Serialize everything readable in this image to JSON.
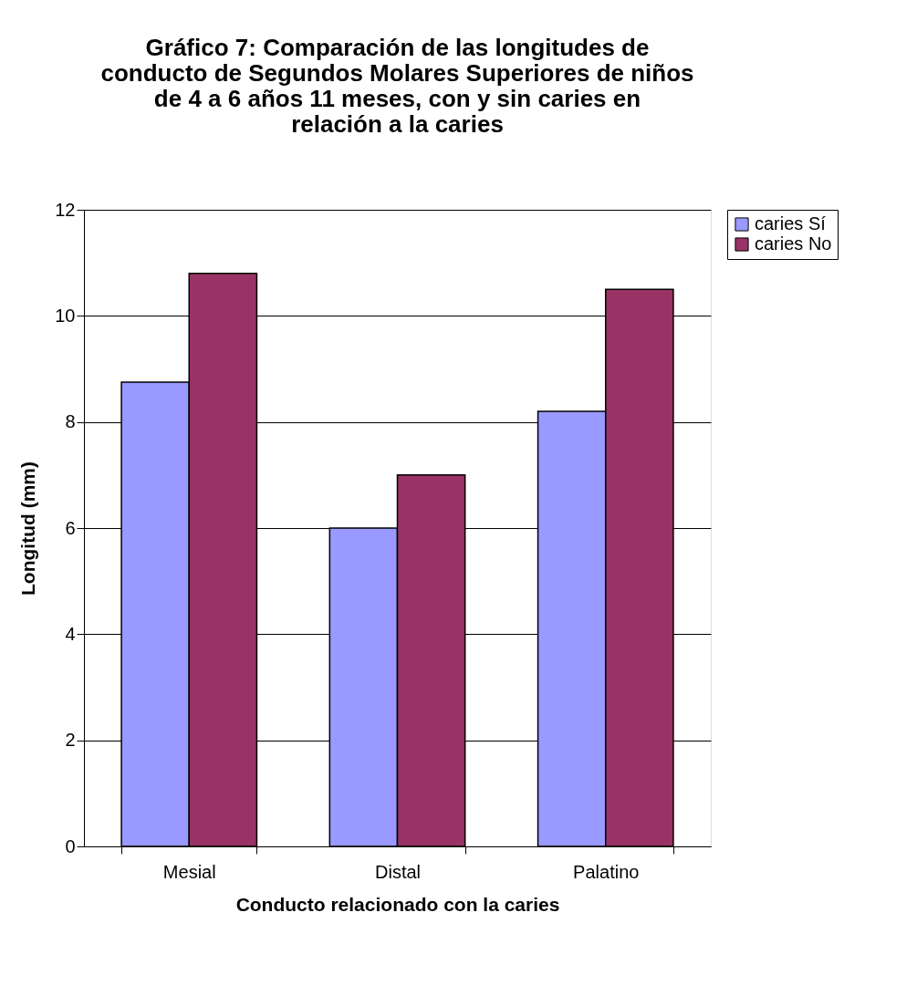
{
  "chart_data": {
    "type": "bar",
    "title": "Gráfico 7: Comparación de las longitudes de conducto de Segundos Molares Superiores de niños de 4 a 6 años 11 meses, con y sin caries en relación a la caries",
    "xlabel": "Conducto relacionado con la caries",
    "ylabel": "Longitud (mm)",
    "categories": [
      "Mesial",
      "Distal",
      "Palatino"
    ],
    "series": [
      {
        "name": "caries Sí",
        "color": "#9999ff",
        "values": [
          8.75,
          6.0,
          8.2
        ]
      },
      {
        "name": "caries No",
        "color": "#993366",
        "values": [
          10.8,
          7.0,
          10.5
        ]
      }
    ],
    "ylim": [
      0,
      12
    ],
    "yticks": [
      0,
      2,
      4,
      6,
      8,
      10,
      12
    ],
    "grid": "y",
    "legend": "right"
  }
}
